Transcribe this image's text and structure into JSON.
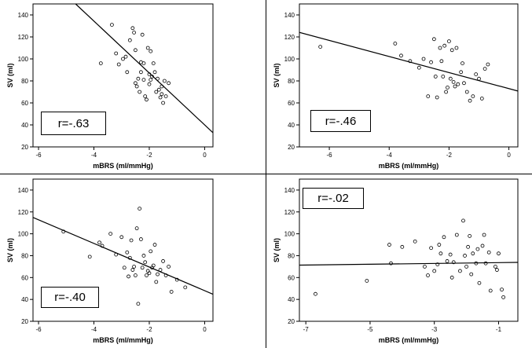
{
  "figure": {
    "panels": 4,
    "layout": "2x2 grid"
  },
  "chart_data": [
    {
      "type": "scatter",
      "title": "",
      "xlabel": "mBRS (ml/mmHg)",
      "ylabel": "SV (ml)",
      "xlim": [
        -6.2,
        0.3
      ],
      "ylim": [
        20,
        150
      ],
      "xticks": [
        -6,
        -4,
        -2,
        0
      ],
      "xtick_labels": [
        "-6",
        "-4",
        "-2",
        "0"
      ],
      "yticks": [
        20,
        40,
        60,
        80,
        100,
        120,
        140
      ],
      "ytick_labels": [
        "20",
        "40",
        "60",
        "80",
        "100",
        "120",
        "140"
      ],
      "annotation": "r=-.63",
      "annotation_pos": "bottom-left",
      "fit_line": {
        "slope": -23.6,
        "intercept": 40
      },
      "points": {
        "x": [
          -3.75,
          -3.35,
          -3.2,
          -3.1,
          -2.95,
          -2.85,
          -2.8,
          -2.7,
          -2.6,
          -2.55,
          -2.5,
          -2.5,
          -2.45,
          -2.4,
          -2.35,
          -2.3,
          -2.3,
          -2.25,
          -2.2,
          -2.2,
          -2.15,
          -2.1,
          -2.05,
          -2.0,
          -2.0,
          -1.95,
          -1.95,
          -1.9,
          -1.85,
          -1.8,
          -1.75,
          -1.7,
          -1.65,
          -1.6,
          -1.55,
          -1.55,
          -1.5,
          -1.45,
          -1.4,
          -1.3
        ],
        "y": [
          96,
          131,
          105,
          95,
          100,
          102,
          88,
          117,
          128,
          124,
          108,
          78,
          75,
          82,
          70,
          97,
          88,
          122,
          81,
          96,
          66,
          63,
          110,
          86,
          77,
          81,
          107,
          84,
          96,
          88,
          70,
          82,
          72,
          65,
          75,
          68,
          60,
          80,
          66,
          78
        ]
      }
    },
    {
      "type": "scatter",
      "title": "",
      "xlabel": "mBRS (ml/mmHg)",
      "ylabel": "SV (ml)",
      "xlim": [
        -7.0,
        0.3
      ],
      "ylim": [
        20,
        150
      ],
      "xticks": [
        -6,
        -4,
        -2,
        0
      ],
      "xtick_labels": [
        "-6",
        "-4",
        "-2",
        "0"
      ],
      "yticks": [
        20,
        40,
        60,
        80,
        100,
        120,
        140
      ],
      "ytick_labels": [
        "20",
        "40",
        "60",
        "80",
        "100",
        "120",
        "140"
      ],
      "annotation": "r=-.46",
      "annotation_pos": "bottom-left",
      "fit_line": {
        "slope": -7.3,
        "intercept": 73
      },
      "points": {
        "x": [
          -6.3,
          -3.8,
          -3.6,
          -3.3,
          -3.0,
          -2.85,
          -2.7,
          -2.6,
          -2.5,
          -2.45,
          -2.4,
          -2.3,
          -2.25,
          -2.2,
          -2.15,
          -2.1,
          -2.05,
          -2.0,
          -1.95,
          -1.9,
          -1.85,
          -1.8,
          -1.75,
          -1.7,
          -1.6,
          -1.55,
          -1.5,
          -1.4,
          -1.3,
          -1.2,
          -1.1,
          -1.0,
          -0.9,
          -0.8,
          -0.7
        ],
        "y": [
          111,
          114,
          103,
          98,
          92,
          100,
          66,
          97,
          118,
          84,
          65,
          110,
          98,
          84,
          112,
          70,
          74,
          116,
          82,
          108,
          79,
          75,
          110,
          77,
          88,
          96,
          78,
          70,
          62,
          66,
          86,
          82,
          64,
          91,
          95
        ]
      }
    },
    {
      "type": "scatter",
      "title": "",
      "xlabel": "mBRS (ml/mmHg)",
      "ylabel": "SV (ml)",
      "xlim": [
        -6.2,
        0.3
      ],
      "ylim": [
        20,
        150
      ],
      "xticks": [
        -6,
        -4,
        -2,
        0
      ],
      "xtick_labels": [
        "-6",
        "-4",
        "-2",
        "0"
      ],
      "yticks": [
        20,
        40,
        60,
        80,
        100,
        120,
        140
      ],
      "ytick_labels": [
        "20",
        "40",
        "60",
        "80",
        "100",
        "120",
        "140"
      ],
      "annotation": "r=-.40",
      "annotation_pos": "bottom-left",
      "fit_line": {
        "slope": -10.8,
        "intercept": 48
      },
      "points": {
        "x": [
          -5.1,
          -4.15,
          -3.8,
          -3.7,
          -3.4,
          -3.2,
          -3.0,
          -2.9,
          -2.8,
          -2.75,
          -2.7,
          -2.65,
          -2.6,
          -2.55,
          -2.5,
          -2.45,
          -2.4,
          -2.35,
          -2.3,
          -2.25,
          -2.2,
          -2.15,
          -2.1,
          -2.05,
          -2.0,
          -1.95,
          -1.9,
          -1.85,
          -1.8,
          -1.75,
          -1.7,
          -1.6,
          -1.5,
          -1.4,
          -1.3,
          -1.2,
          -1.0,
          -0.7
        ],
        "y": [
          102,
          79,
          92,
          89,
          100,
          81,
          97,
          69,
          83,
          61,
          78,
          94,
          67,
          70,
          62,
          105,
          36,
          123,
          95,
          69,
          80,
          74,
          62,
          66,
          64,
          84,
          69,
          71,
          90,
          56,
          63,
          67,
          75,
          62,
          70,
          47,
          58,
          51
        ]
      }
    },
    {
      "type": "scatter",
      "title": "",
      "xlabel": "mBRS (ml/mmHg)",
      "ylabel": "SV (ml)",
      "xlim": [
        -7.2,
        -0.4
      ],
      "ylim": [
        20,
        150
      ],
      "xticks": [
        -7,
        -5,
        -3,
        -1
      ],
      "xtick_labels": [
        "-7",
        "-5",
        "-3",
        "-1"
      ],
      "yticks": [
        20,
        40,
        60,
        80,
        100,
        120,
        140
      ],
      "ytick_labels": [
        "20",
        "40",
        "60",
        "80",
        "100",
        "120",
        "140"
      ],
      "annotation": "r=-.02",
      "annotation_pos": "top-left",
      "fit_line": {
        "slope": 0.37,
        "intercept": 74
      },
      "points": {
        "x": [
          -6.7,
          -5.1,
          -4.4,
          -4.35,
          -4.0,
          -3.6,
          -3.3,
          -3.2,
          -3.1,
          -3.0,
          -2.9,
          -2.85,
          -2.8,
          -2.7,
          -2.6,
          -2.5,
          -2.45,
          -2.4,
          -2.3,
          -2.2,
          -2.1,
          -2.05,
          -2.0,
          -1.95,
          -1.9,
          -1.85,
          -1.8,
          -1.7,
          -1.65,
          -1.6,
          -1.5,
          -1.45,
          -1.4,
          -1.3,
          -1.25,
          -1.1,
          -1.05,
          -0.9,
          -0.85,
          -1.0
        ],
        "y": [
          45,
          57,
          90,
          73,
          88,
          93,
          70,
          62,
          87,
          66,
          72,
          90,
          82,
          97,
          75,
          81,
          60,
          74,
          99,
          66,
          112,
          80,
          70,
          88,
          98,
          63,
          82,
          73,
          86,
          55,
          89,
          99,
          73,
          83,
          48,
          70,
          67,
          49,
          42,
          82
        ]
      }
    }
  ]
}
